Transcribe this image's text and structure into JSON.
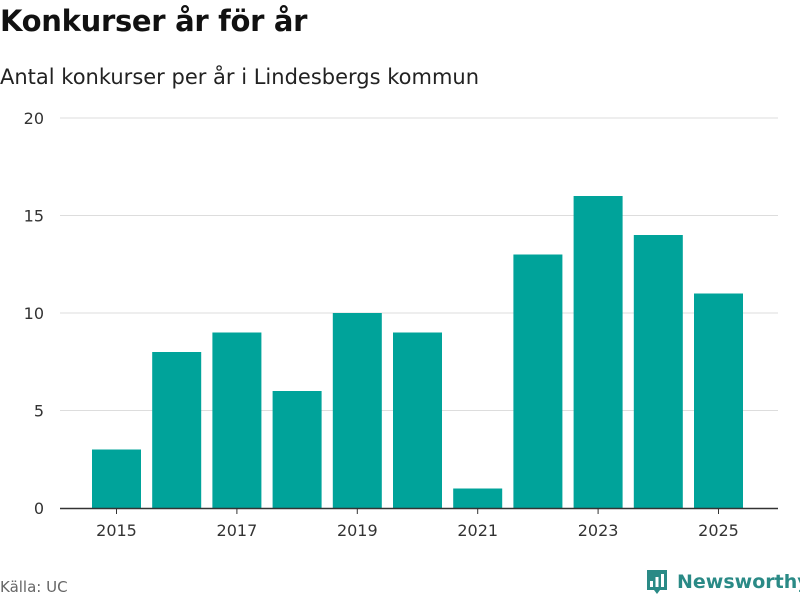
{
  "header": {
    "title": "Konkurser år för år",
    "subtitle": "Antal konkurser per år i Lindesbergs kommun"
  },
  "footer": {
    "source": "Källa: UC",
    "brand": "Newsworthy"
  },
  "colors": {
    "bar": "#00a39a",
    "grid": "#dddddd",
    "axis": "#333333",
    "brand": "#2a8a86"
  },
  "chart_data": {
    "type": "bar",
    "title": "Konkurser år för år",
    "subtitle": "Antal konkurser per år i Lindesbergs kommun",
    "xlabel": "",
    "ylabel": "",
    "categories": [
      "2015",
      "2016",
      "2017",
      "2018",
      "2019",
      "2020",
      "2021",
      "2022",
      "2023",
      "2024",
      "2025"
    ],
    "values": [
      3,
      8,
      9,
      6,
      10,
      9,
      1,
      13,
      16,
      14,
      11
    ],
    "ylim": [
      0,
      20
    ],
    "yticks": [
      0,
      5,
      10,
      15,
      20
    ],
    "xtick_labels": [
      "2015",
      "2017",
      "2019",
      "2021",
      "2023",
      "2025"
    ],
    "grid": true,
    "legend": false
  }
}
